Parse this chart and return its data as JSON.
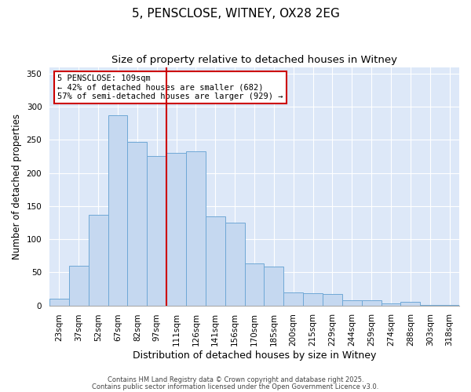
{
  "title": "5, PENSCLOSE, WITNEY, OX28 2EG",
  "subtitle": "Size of property relative to detached houses in Witney",
  "xlabel": "Distribution of detached houses by size in Witney",
  "ylabel": "Number of detached properties",
  "categories": [
    "23sqm",
    "37sqm",
    "52sqm",
    "67sqm",
    "82sqm",
    "97sqm",
    "111sqm",
    "126sqm",
    "141sqm",
    "156sqm",
    "170sqm",
    "185sqm",
    "200sqm",
    "215sqm",
    "229sqm",
    "244sqm",
    "259sqm",
    "274sqm",
    "288sqm",
    "303sqm",
    "318sqm"
  ],
  "values": [
    10,
    60,
    137,
    287,
    247,
    226,
    230,
    233,
    134,
    125,
    63,
    59,
    20,
    19,
    17,
    8,
    8,
    3,
    6,
    1,
    1
  ],
  "bar_color": "#c5d8f0",
  "bar_edge_color": "#6fa8d6",
  "vline_index": 6,
  "vline_color": "#cc0000",
  "annotation_title": "5 PENSCLOSE: 109sqm",
  "annotation_line2": "← 42% of detached houses are smaller (682)",
  "annotation_line3": "57% of semi-detached houses are larger (929) →",
  "annotation_box_color": "#ffffff",
  "annotation_box_edge": "#cc0000",
  "ylim": [
    0,
    360
  ],
  "yticks": [
    0,
    50,
    100,
    150,
    200,
    250,
    300,
    350
  ],
  "footer1": "Contains HM Land Registry data © Crown copyright and database right 2025.",
  "footer2": "Contains public sector information licensed under the Open Government Licence v3.0.",
  "bg_color": "#dde8f8",
  "fig_bg_color": "#ffffff",
  "title_fontsize": 11,
  "subtitle_fontsize": 9.5,
  "xlabel_fontsize": 9,
  "ylabel_fontsize": 8.5,
  "tick_fontsize": 7.5,
  "footer_fontsize": 6,
  "ann_fontsize": 7.5
}
